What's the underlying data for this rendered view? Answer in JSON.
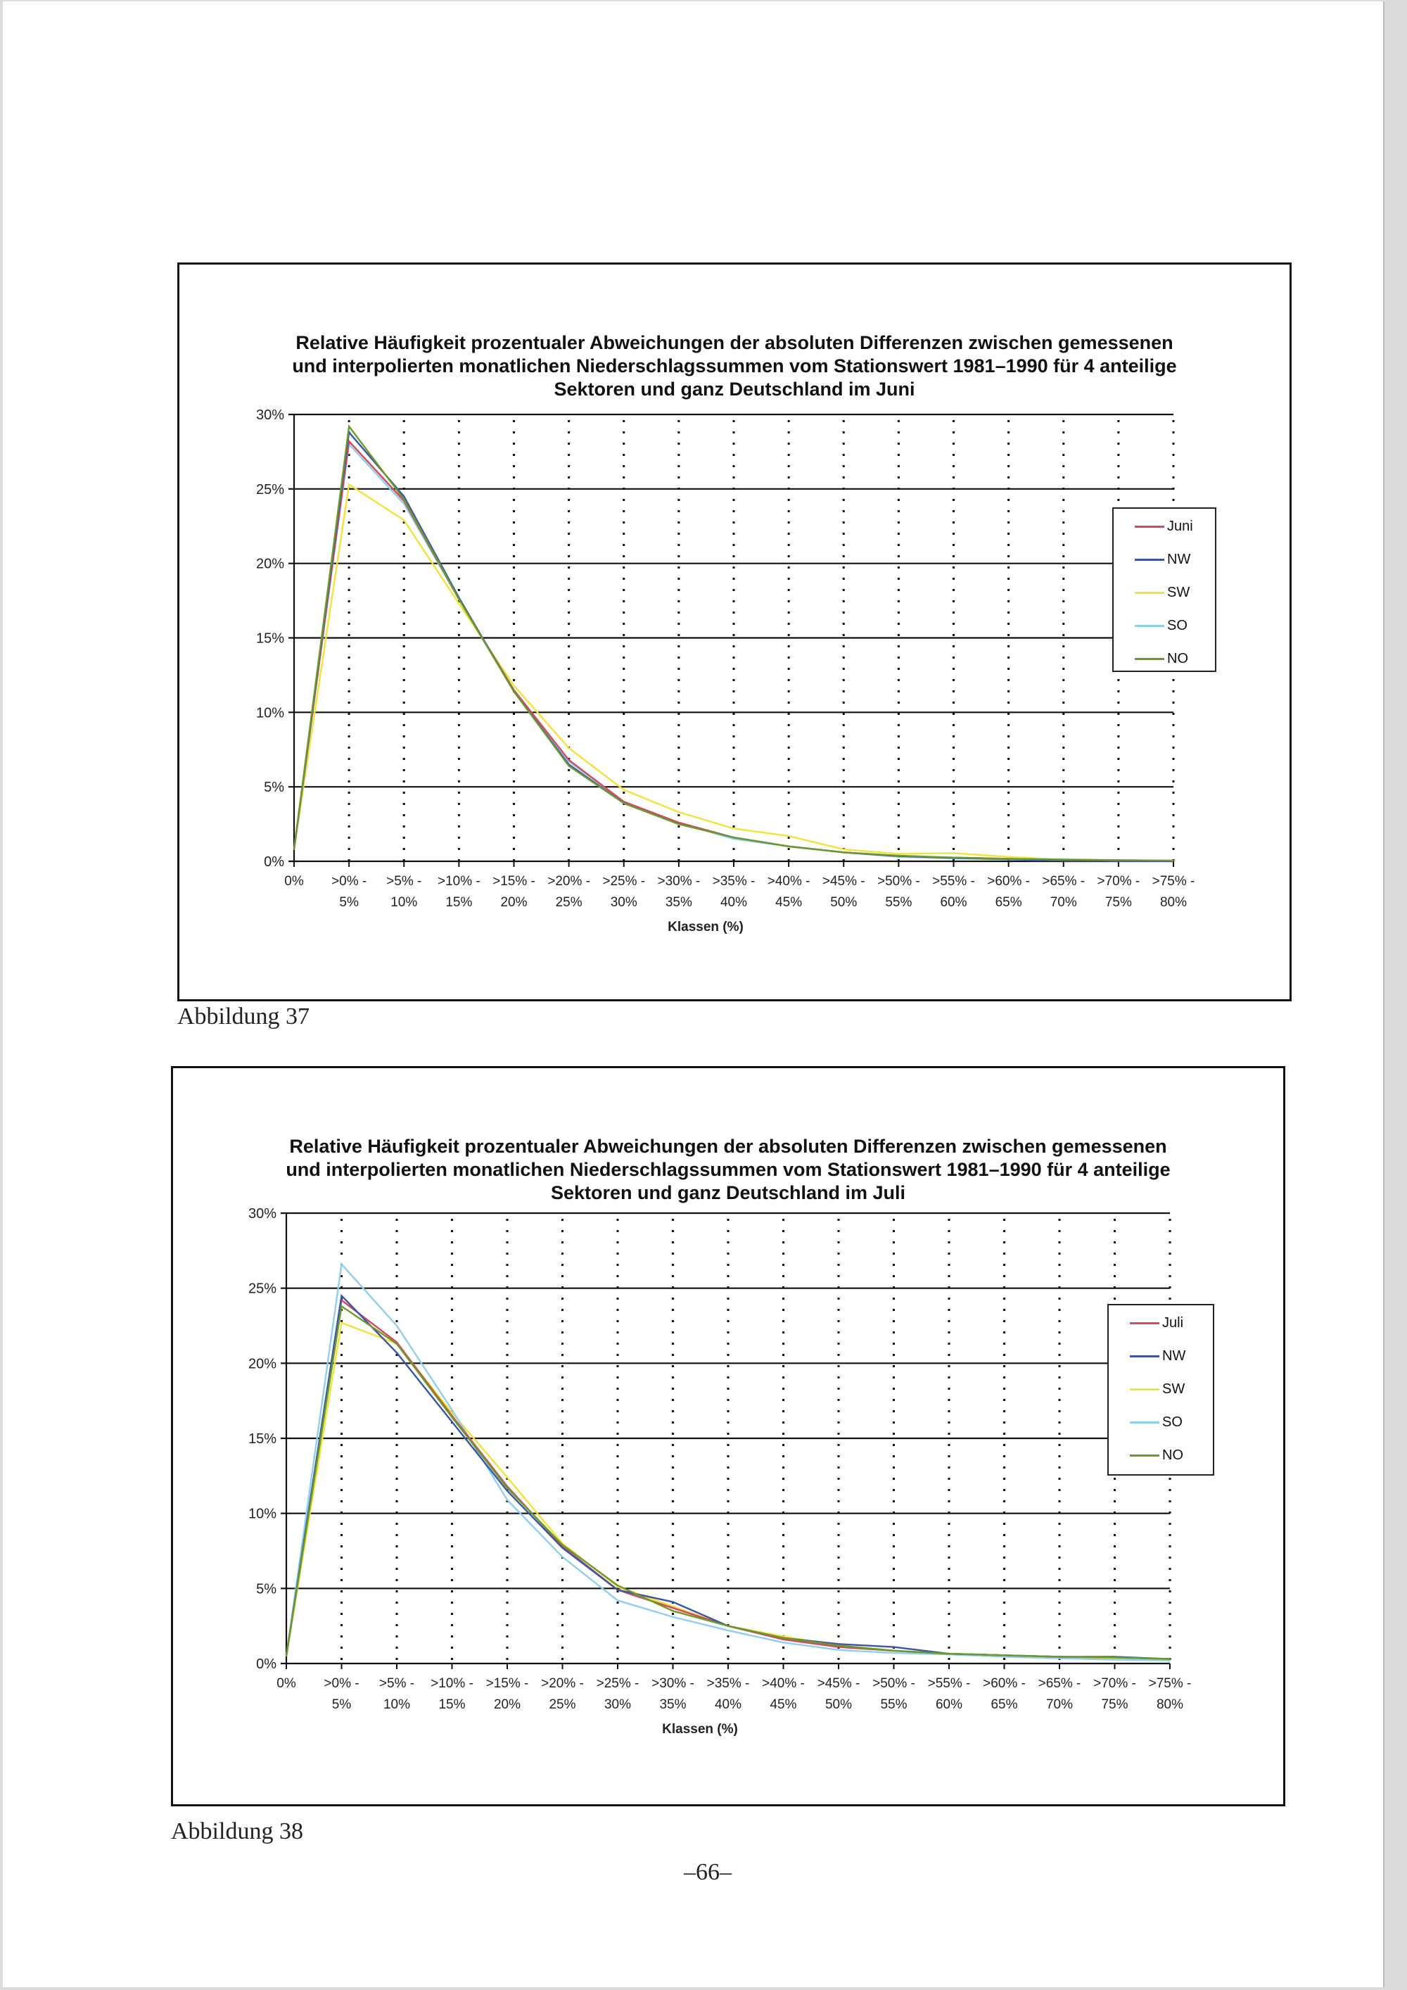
{
  "figures": [
    {
      "caption": "Abbildung 37",
      "chart_data": {
        "type": "line",
        "title_lines": [
          "Relative Häufigkeit prozentualer Abweichungen der absoluten Differenzen zwischen gemessenen",
          "und interpolierten monatlichen Niederschlagssummen vom Stationswert 1981–1990 für 4 anteilige",
          "Sektoren und ganz Deutschland im Juni"
        ],
        "xlabel": "Klassen (%)",
        "ylabel": "",
        "ylim": [
          0,
          30
        ],
        "yticks": [
          "0%",
          "5%",
          "10%",
          "15%",
          "20%",
          "25%",
          "30%"
        ],
        "categories": [
          [
            "0%",
            ""
          ],
          [
            ">0% -",
            "5%"
          ],
          [
            ">5% -",
            "10%"
          ],
          [
            ">10% -",
            "15%"
          ],
          [
            ">15% -",
            "20%"
          ],
          [
            ">20% -",
            "25%"
          ],
          [
            ">25% -",
            "30%"
          ],
          [
            ">30% -",
            "35%"
          ],
          [
            ">35% -",
            "40%"
          ],
          [
            ">40% -",
            "45%"
          ],
          [
            ">45% -",
            "50%"
          ],
          [
            ">50% -",
            "55%"
          ],
          [
            ">55% -",
            "60%"
          ],
          [
            ">60% -",
            "65%"
          ],
          [
            ">65% -",
            "70%"
          ],
          [
            ">70% -",
            "75%"
          ],
          [
            ">75% -",
            "80%"
          ]
        ],
        "grid": "horizontal solid, vertical dotted",
        "legend_position": "right",
        "series": [
          {
            "name": "Juni",
            "color": "#d8475f",
            "values": [
              0.8,
              28.2,
              24.2,
              17.6,
              11.5,
              6.8,
              4.0,
              2.6,
              1.6,
              1.0,
              0.6,
              0.35,
              0.25,
              0.17,
              0.05,
              0.03,
              0.03
            ]
          },
          {
            "name": "NW",
            "color": "#3a55a8",
            "values": [
              0.8,
              28.8,
              24.5,
              17.7,
              11.4,
              6.5,
              3.9,
              2.5,
              1.6,
              1.0,
              0.6,
              0.35,
              0.22,
              0.15,
              0.05,
              0.03,
              0.03
            ]
          },
          {
            "name": "SW",
            "color": "#f2e23a",
            "values": [
              0.8,
              25.3,
              22.9,
              17.3,
              11.8,
              7.6,
              4.8,
              3.3,
              2.2,
              1.7,
              0.8,
              0.5,
              0.55,
              0.3,
              0.1,
              0.05,
              0.05
            ]
          },
          {
            "name": "SO",
            "color": "#8fcfee",
            "values": [
              0.8,
              28.0,
              24.0,
              17.6,
              11.5,
              6.7,
              4.0,
              2.6,
              1.5,
              1.0,
              0.6,
              0.3,
              0.2,
              0.12,
              0.05,
              0.03,
              0.03
            ]
          },
          {
            "name": "NO",
            "color": "#6a9b2a",
            "values": [
              0.8,
              29.2,
              24.3,
              17.6,
              11.4,
              6.4,
              3.9,
              2.5,
              1.6,
              1.0,
              0.6,
              0.38,
              0.25,
              0.17,
              0.12,
              0.08,
              0.05
            ]
          }
        ]
      }
    },
    {
      "caption": "Abbildung 38",
      "chart_data": {
        "type": "line",
        "title_lines": [
          "Relative Häufigkeit prozentualer Abweichungen der absoluten Differenzen zwischen gemessenen",
          "und interpolierten monatlichen Niederschlagssummen vom Stationswert 1981–1990 für 4 anteilige",
          "Sektoren und ganz Deutschland im Juli"
        ],
        "xlabel": "Klassen (%)",
        "ylabel": "",
        "ylim": [
          0,
          30
        ],
        "yticks": [
          "0%",
          "5%",
          "10%",
          "15%",
          "20%",
          "25%",
          "30%"
        ],
        "categories": [
          [
            "0%",
            ""
          ],
          [
            ">0% -",
            "5%"
          ],
          [
            ">5% -",
            "10%"
          ],
          [
            ">10% -",
            "15%"
          ],
          [
            ">15% -",
            "20%"
          ],
          [
            ">20% -",
            "25%"
          ],
          [
            ">25% -",
            "30%"
          ],
          [
            ">30% -",
            "35%"
          ],
          [
            ">35% -",
            "40%"
          ],
          [
            ">40% -",
            "45%"
          ],
          [
            ">45% -",
            "50%"
          ],
          [
            ">50% -",
            "55%"
          ],
          [
            ">55% -",
            "60%"
          ],
          [
            ">60% -",
            "65%"
          ],
          [
            ">65% -",
            "70%"
          ],
          [
            ">70% -",
            "75%"
          ],
          [
            ">75% -",
            "80%"
          ]
        ],
        "grid": "horizontal solid, vertical dotted",
        "legend_position": "right",
        "series": [
          {
            "name": "Juli",
            "color": "#d8475f",
            "values": [
              0.5,
              24.2,
              21.4,
              16.5,
              11.8,
              7.8,
              4.9,
              3.7,
              2.5,
              1.6,
              1.1,
              0.85,
              0.65,
              0.55,
              0.45,
              0.4,
              0.3
            ]
          },
          {
            "name": "NW",
            "color": "#3a55a8",
            "values": [
              0.5,
              24.5,
              20.7,
              16.1,
              11.5,
              7.7,
              4.9,
              4.1,
              2.5,
              1.7,
              1.3,
              1.1,
              0.65,
              0.55,
              0.45,
              0.45,
              0.3
            ]
          },
          {
            "name": "SW",
            "color": "#f2e23a",
            "values": [
              0.5,
              22.7,
              21.3,
              16.7,
              12.4,
              8.0,
              5.1,
              3.8,
              2.5,
              1.8,
              1.2,
              0.85,
              0.65,
              0.5,
              0.4,
              0.35,
              0.3
            ]
          },
          {
            "name": "SO",
            "color": "#8fcfee",
            "values": [
              0.5,
              26.6,
              22.5,
              16.9,
              10.9,
              7.1,
              4.2,
              3.1,
              2.2,
              1.4,
              0.9,
              0.7,
              0.6,
              0.45,
              0.35,
              0.25,
              0.2
            ]
          },
          {
            "name": "NO",
            "color": "#6a9b2a",
            "values": [
              0.5,
              23.8,
              21.3,
              16.4,
              11.7,
              7.9,
              5.2,
              3.5,
              2.5,
              1.7,
              1.2,
              0.85,
              0.65,
              0.55,
              0.45,
              0.4,
              0.3
            ]
          }
        ]
      }
    }
  ],
  "page_number": "–66–"
}
